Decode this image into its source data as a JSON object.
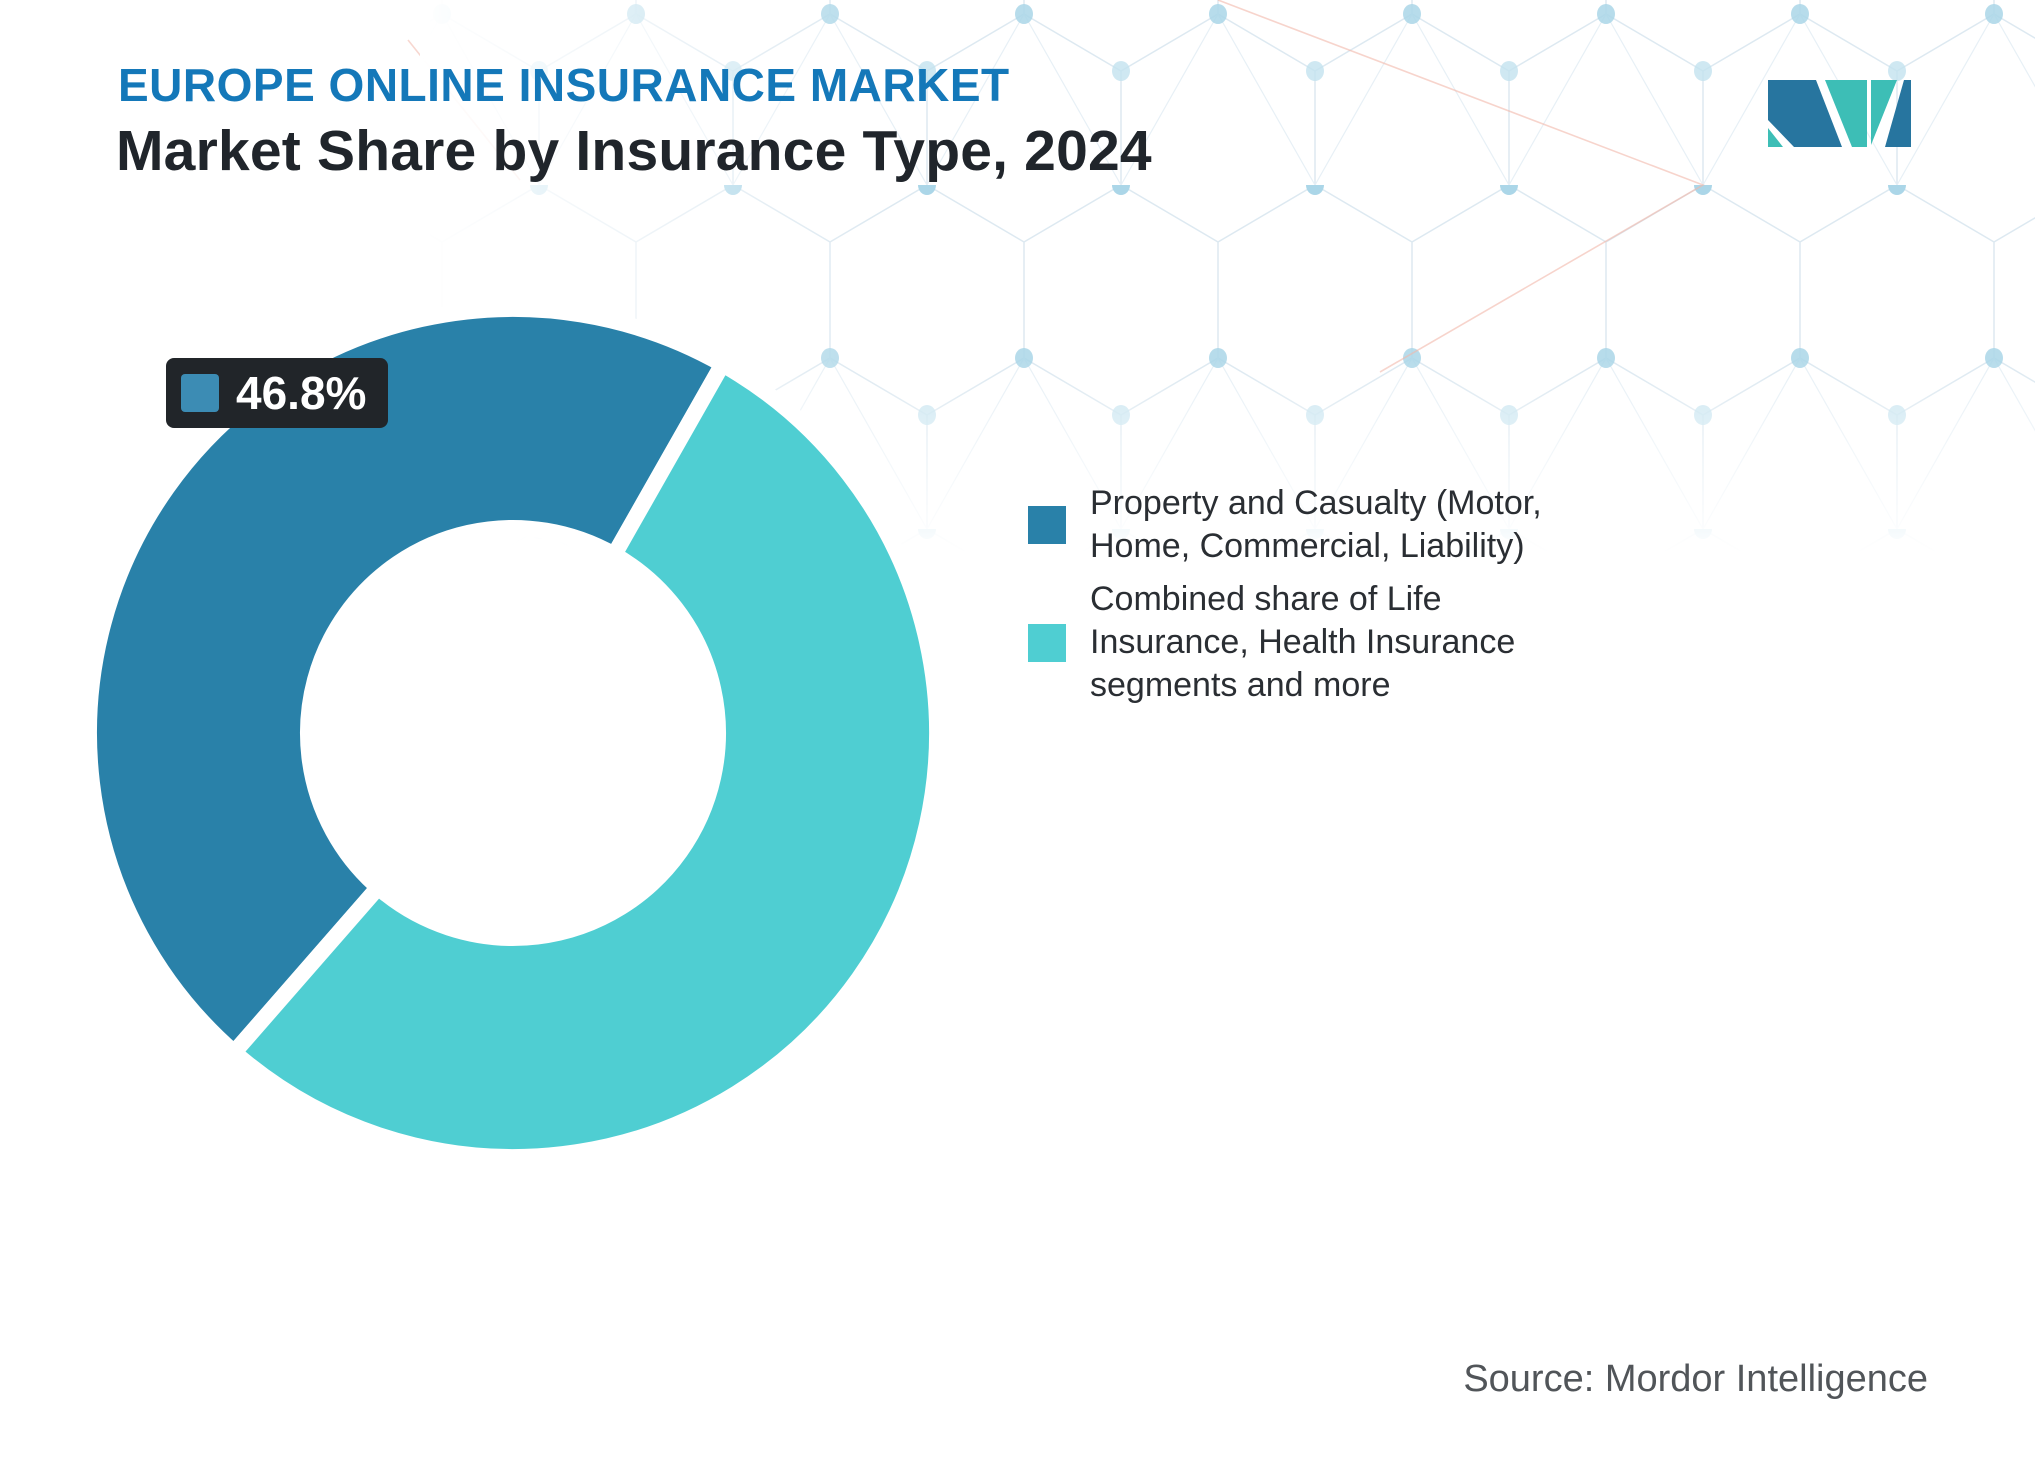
{
  "header": {
    "kicker": "EUROPE ONLINE INSURANCE MARKET",
    "title": "Market Share by Insurance Type, 2024"
  },
  "colors": {
    "kicker_text": "#1478b9",
    "title_text": "#20252b",
    "slice_dark": "#2981a9",
    "slice_teal": "#4fced2",
    "label_bg": "#212529",
    "label_swatch": "#3c8cb4",
    "legend_text": "#2a2e33",
    "source_text": "#515559",
    "logo_blue": "#27759f",
    "logo_teal": "#3dbeb6",
    "pattern_line": "#dde9f1",
    "pattern_dot": "#abd6e8",
    "pattern_accent": "#f1b7aa"
  },
  "icons": {
    "logo": "mordor-intelligence-m-logo",
    "datalabel_swatch": "series-color-swatch",
    "legend_swatches": "series-color-swatch"
  },
  "datalabel": {
    "value": "46.8%"
  },
  "legend": {
    "items": [
      {
        "color_key": "slice_dark",
        "lines": [
          "Property and Casualty (Motor,",
          "Home, Commercial, Liability)"
        ]
      },
      {
        "color_key": "slice_teal",
        "lines": [
          "Combined share of Life",
          "Insurance, Health Insurance",
          "segments and more"
        ]
      }
    ]
  },
  "source": {
    "text": "Source: Mordor Intelligence"
  },
  "chart_data": {
    "type": "pie",
    "subtype": "donut",
    "title": "Market Share by Insurance Type, 2024",
    "series": [
      {
        "name": "Property and Casualty (Motor, Home, Commercial, Liability)",
        "value": 46.8,
        "label": "46.8%",
        "color": "#2981a9",
        "color_key": "slice_dark"
      },
      {
        "name": "Combined share of Life Insurance, Health Insurance segments and more",
        "value": 53.2,
        "label": "",
        "color": "#4fced2",
        "color_key": "slice_teal"
      }
    ],
    "total": 100,
    "unit": "%",
    "legend_position": "right",
    "inner_radius_ratio": 0.51,
    "start_angle_deg": 60.4,
    "direction": "counterclockwise",
    "slice_border_px": 16
  }
}
